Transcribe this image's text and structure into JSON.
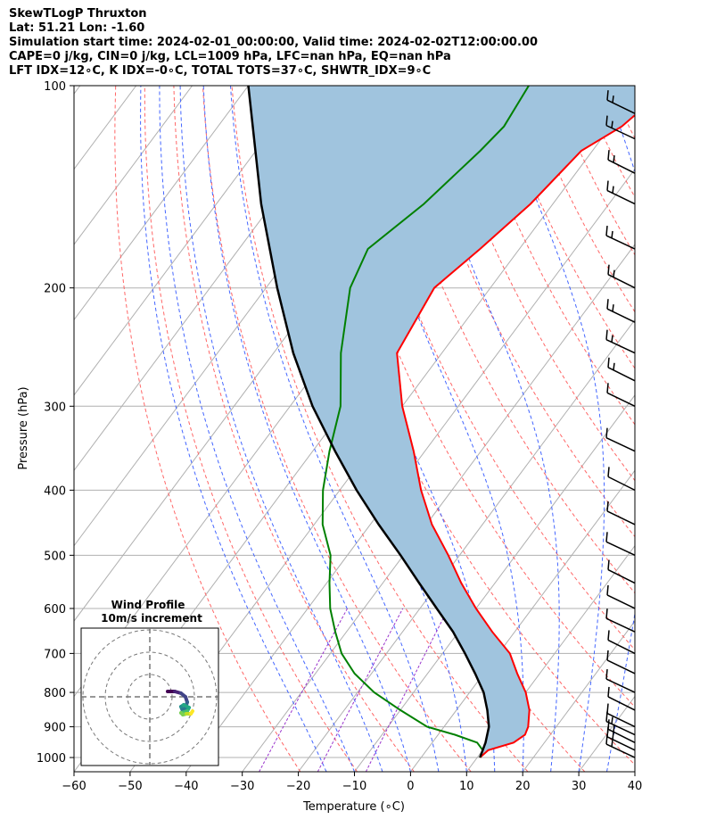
{
  "header": {
    "line1": "SkewTLogP Thruxton",
    "line2": "Lat: 51.21   Lon: -1.60",
    "line3": "Simulation start time: 2024-02-01_00:00:00, Valid time: 2024-02-02T12:00:00.00",
    "line4": "CAPE=0 j/kg, CIN=0 j/kg, LCL=1009 hPa, LFC=nan hPa, EQ=nan hPa",
    "line5": "LFT IDX=12∘C, K IDX=-0∘C, TOTAL TOTS=37∘C, SHWTR_IDX=9∘C"
  },
  "chart_data": {
    "type": "line",
    "xlabel": "Temperature (∘C)",
    "ylabel": "Pressure (hPa)",
    "xlim": [
      -60,
      40
    ],
    "ylim": [
      1050,
      100
    ],
    "y_scale": "log",
    "grid": true,
    "x_ticks": [
      -60,
      -50,
      -40,
      -30,
      -20,
      -10,
      0,
      10,
      20,
      30,
      40
    ],
    "y_ticks": [
      1000,
      900,
      800,
      700,
      600,
      500,
      400,
      300,
      200,
      100
    ],
    "colors": {
      "temperature": "#ff0000",
      "dewpoint": "#008000",
      "parcel": "#000000",
      "shading": "#a0c4de",
      "dry_adiabats": "#ff6666",
      "moist_adiabats": "#4466ff",
      "mixing_ratio": "#9933cc"
    },
    "series": [
      {
        "pressure": [
          1000,
          975,
          950,
          925,
          900,
          850,
          800,
          750,
          700,
          650,
          600,
          550,
          500,
          450,
          400,
          350,
          300,
          250,
          200,
          175,
          150,
          125,
          115,
          100
        ],
        "values": [
          10.5,
          11,
          14.5,
          15.5,
          15,
          13,
          10,
          6,
          2,
          -4,
          -10,
          -16,
          -22,
          -29,
          -35.5,
          -42,
          -50,
          -58,
          -60,
          -57,
          -54,
          -52,
          -48,
          -45
        ]
      },
      {
        "pressure": [
          1000,
          975,
          950,
          925,
          900,
          850,
          800,
          750,
          700,
          650,
          600,
          550,
          500,
          450,
          400,
          350,
          300,
          250,
          200,
          175,
          150,
          125,
          115,
          100
        ],
        "values": [
          10.5,
          10,
          8,
          3,
          -3,
          -10,
          -17,
          -23,
          -28,
          -32,
          -36,
          -39.5,
          -43,
          -48.5,
          -53,
          -57,
          -61,
          -68,
          -75,
          -77,
          -73,
          -70,
          -69,
          -70
        ]
      },
      {
        "pressure": [
          1000,
          950,
          900,
          850,
          800,
          750,
          700,
          650,
          600,
          550,
          500,
          450,
          400,
          350,
          300,
          250,
          200,
          150,
          100
        ],
        "values": [
          10.5,
          9.5,
          8,
          5.5,
          2.5,
          -1.5,
          -6,
          -11,
          -17,
          -23.5,
          -30.5,
          -38.5,
          -47,
          -56,
          -66,
          -76.5,
          -88,
          -102,
          -120
        ]
      }
    ],
    "wind_barbs_pressure": [
      1000,
      975,
      950,
      925,
      900,
      850,
      800,
      750,
      700,
      650,
      600,
      550,
      500,
      450,
      400,
      350,
      300,
      275,
      250,
      225,
      200,
      175,
      150,
      135,
      120,
      110
    ],
    "hodograph": {
      "title": "Wind Profile",
      "subtitle": "10m/s increment"
    }
  }
}
